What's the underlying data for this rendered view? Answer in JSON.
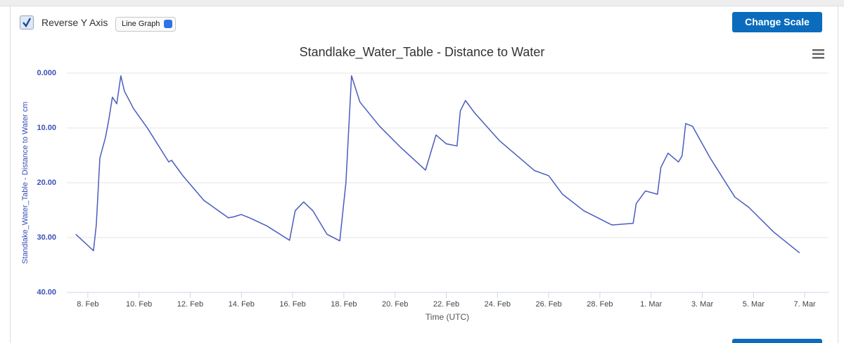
{
  "controls": {
    "checkbox_label": "Reverse Y Axis",
    "select": "Line Graph",
    "button": "Change Scale"
  },
  "chart_data": {
    "type": "line",
    "title": "Standlake_Water_Table - Distance to Water",
    "y_label": "Standlake_Water_Table - Distance to Water  cm",
    "x_label": "Time (UTC)",
    "color": "#4a5cbf",
    "reversed": true,
    "grid": true,
    "ylim": [
      0,
      40
    ],
    "yticks": [
      {
        "value": 0,
        "label": "0.000"
      },
      {
        "value": 10,
        "label": "10.00"
      },
      {
        "value": 20,
        "label": "20.00"
      },
      {
        "value": 30,
        "label": "30.00"
      },
      {
        "value": 40,
        "label": "40.00"
      }
    ],
    "xlim": [
      7.18,
      36.93
    ],
    "xticks": [
      {
        "value": 8,
        "label": "8. Feb"
      },
      {
        "value": 10,
        "label": "10. Feb"
      },
      {
        "value": 12,
        "label": "12. Feb"
      },
      {
        "value": 14,
        "label": "14. Feb"
      },
      {
        "value": 16,
        "label": "16. Feb"
      },
      {
        "value": 18,
        "label": "18. Feb"
      },
      {
        "value": 20,
        "label": "20. Feb"
      },
      {
        "value": 22,
        "label": "22. Feb"
      },
      {
        "value": 24,
        "label": "24. Feb"
      },
      {
        "value": 26,
        "label": "26. Feb"
      },
      {
        "value": 28,
        "label": "28. Feb"
      },
      {
        "value": 30,
        "label": "1. Mar"
      },
      {
        "value": 32,
        "label": "3. Mar"
      },
      {
        "value": 34,
        "label": "5. Mar"
      },
      {
        "value": 36,
        "label": "7. Mar"
      }
    ],
    "x": [
      7.53,
      8.22,
      8.33,
      8.47,
      8.69,
      8.82,
      8.96,
      9.13,
      9.29,
      9.43,
      9.79,
      10.34,
      11.16,
      11.27,
      11.71,
      12.53,
      13.49,
      13.71,
      13.99,
      14.32,
      15.0,
      15.88,
      16.1,
      16.43,
      16.79,
      17.34,
      17.84,
      18.08,
      18.3,
      18.63,
      19.4,
      20.23,
      21.19,
      21.6,
      22.0,
      22.42,
      22.55,
      22.75,
      23.1,
      24.07,
      25.45,
      26.0,
      26.54,
      27.37,
      28.47,
      29.3,
      29.42,
      29.78,
      30.25,
      30.38,
      30.66,
      31.07,
      31.21,
      31.35,
      31.62,
      32.31,
      33.27,
      33.82,
      34.79,
      35.8
    ],
    "values": [
      29.4,
      32.4,
      27.7,
      15.5,
      11.7,
      8.5,
      4.4,
      5.6,
      0.5,
      3.3,
      6.5,
      10.1,
      16.2,
      15.9,
      18.7,
      23.2,
      26.4,
      26.2,
      25.8,
      26.4,
      27.9,
      30.5,
      25.1,
      23.5,
      25.1,
      29.4,
      30.6,
      20.0,
      0.5,
      5.3,
      9.7,
      13.6,
      17.7,
      11.3,
      12.9,
      13.3,
      6.9,
      5.0,
      7.2,
      12.3,
      17.8,
      18.7,
      22.1,
      25.1,
      27.7,
      27.4,
      23.8,
      21.5,
      22.1,
      17.2,
      14.6,
      16.2,
      15.1,
      9.2,
      9.7,
      15.5,
      22.6,
      24.5,
      29.0,
      32.8
    ]
  }
}
